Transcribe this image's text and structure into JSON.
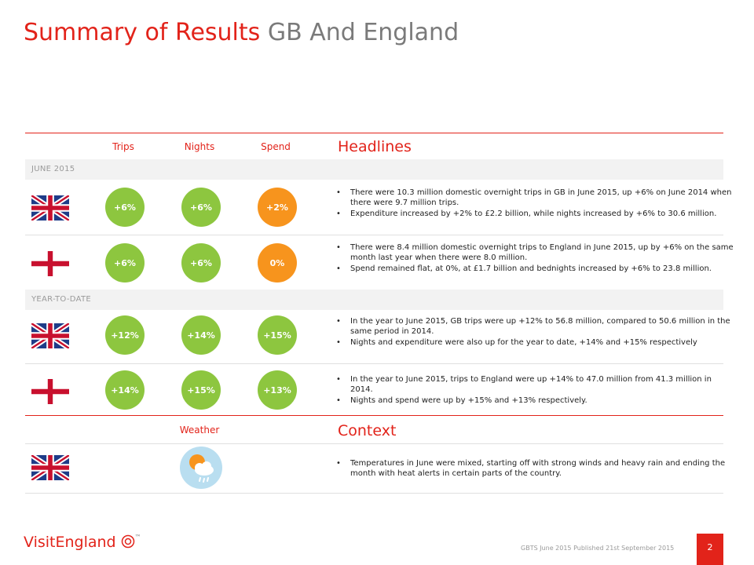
{
  "title": {
    "main": "Summary of Results",
    "sub": "GB And England"
  },
  "headers": {
    "trips": "Trips",
    "nights": "Nights",
    "spend": "Spend",
    "headlines": "Headlines",
    "weather": "Weather",
    "context": "Context"
  },
  "sections": {
    "june": "JUNE 2015",
    "ytd": "YEAR-TO-DATE"
  },
  "rows": [
    {
      "region": "GB",
      "trips": "+6%",
      "nights": "+6%",
      "spend": "+2%",
      "bullets": [
        "There were 10.3 million domestic overnight trips in GB in June 2015, up +6% on June 2014 when there were 9.7 million trips.",
        "Expenditure increased by +2% to £2.2 billion, while nights increased by +6% to 30.6 million."
      ]
    },
    {
      "region": "England",
      "trips": "+6%",
      "nights": "+6%",
      "spend": "0%",
      "bullets": [
        "There were 8.4 million domestic overnight trips to England in June 2015, up by +6% on the same month last year when there were 8.0 million.",
        "Spend remained flat, at 0%, at £1.7 billion and bednights increased by +6% to 23.8 million."
      ]
    },
    {
      "region": "GB",
      "trips": "+12%",
      "nights": "+14%",
      "spend": "+15%",
      "bullets": [
        "In the year to June 2015, GB trips were up +12% to 56.8 million, compared to 50.6 million in the same period in 2014.",
        "Nights and expenditure were also up for the year to date, +14% and +15% respectively"
      ]
    },
    {
      "region": "England",
      "trips": "+14%",
      "nights": "+15%",
      "spend": "+13%",
      "bullets": [
        "In the year to June 2015, trips to England were up +14% to 47.0 million from 41.3 million in 2014.",
        "Nights and spend were up by +15% and +13% respectively."
      ]
    }
  ],
  "context": {
    "bullet": "Temperatures in June were mixed, starting off with strong winds and heavy rain and ending the month with heat alerts in certain parts of the country.",
    "weather_icon": "sun-cloud-rain-icon"
  },
  "colors": {
    "brand_red": "#e2231a",
    "green": "#8dc63f",
    "orange": "#f7941d"
  },
  "footer": {
    "logo": "VisitEngland",
    "tm": "™",
    "note": "GBTS June 2015 Published 21st September 2015",
    "page": "2"
  }
}
